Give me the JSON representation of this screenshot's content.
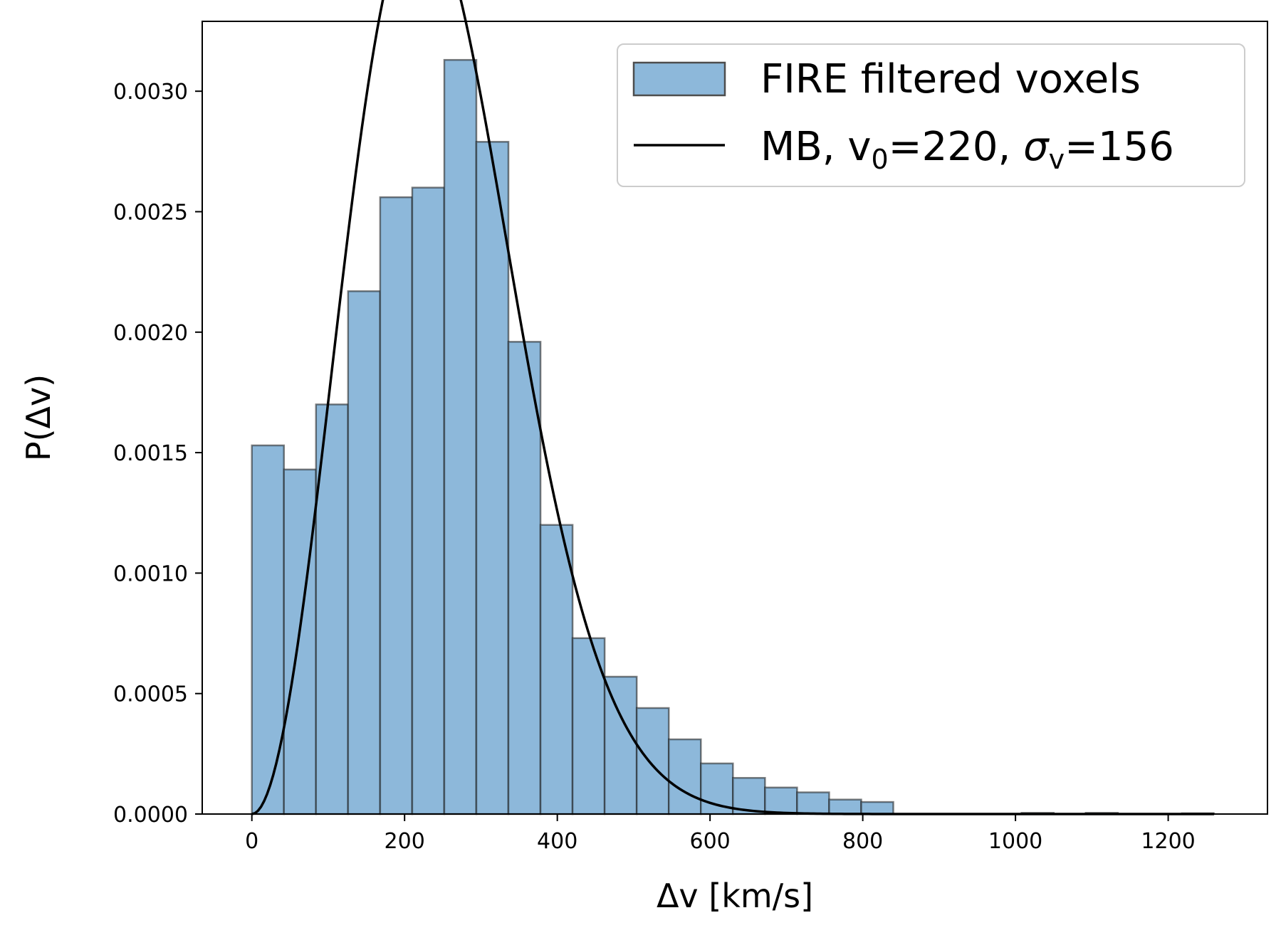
{
  "chart_data": {
    "type": "bar",
    "xlabel": "Δv [km/s]",
    "ylabel": "P(Δv)",
    "xlim": [
      -65,
      1330
    ],
    "ylim": [
      0,
      0.00329
    ],
    "xticks": [
      0,
      200,
      400,
      600,
      800,
      1000,
      1200
    ],
    "xtick_labels": [
      "0",
      "200",
      "400",
      "600",
      "800",
      "1000",
      "1200"
    ],
    "yticks": [
      0,
      0.0005,
      0.001,
      0.0015,
      0.002,
      0.0025,
      0.003
    ],
    "ytick_labels": [
      "0.0000",
      "0.0005",
      "0.0010",
      "0.0015",
      "0.0020",
      "0.0025",
      "0.0030"
    ],
    "legend_position": "top-right",
    "histogram": {
      "name": "FIRE filtered voxels",
      "color": "#8db8da",
      "edge_color": "#1a1a1a",
      "bin_edges": [
        0,
        42,
        84,
        126,
        168,
        210,
        252,
        294,
        336,
        378,
        420,
        462,
        504,
        546,
        588,
        630,
        672,
        714,
        756,
        798,
        840,
        882,
        924,
        966,
        1008,
        1050,
        1092,
        1134,
        1176,
        1218,
        1260
      ],
      "values": [
        0.00153,
        0.00143,
        0.0017,
        0.00217,
        0.00256,
        0.0026,
        0.00313,
        0.00279,
        0.00196,
        0.0012,
        0.00073,
        0.00057,
        0.00044,
        0.00031,
        0.00021,
        0.00015,
        0.00011,
        9e-05,
        6e-05,
        5e-05,
        0,
        0,
        0,
        0,
        5e-06,
        0,
        5e-06,
        0,
        0,
        3e-06
      ]
    },
    "curve": {
      "name": "MB, v0=220, σv=156",
      "color": "#000000",
      "v0": 220,
      "sigma_v": 156,
      "x_range": [
        0,
        1260
      ]
    }
  },
  "legend": {
    "hist_label": "FIRE filtered voxels",
    "curve_prefix": "MB, v",
    "curve_sub0": "0",
    "curve_mid": "=220, ",
    "curve_sigma": "σ",
    "curve_subv": "v",
    "curve_suffix": "=156"
  }
}
